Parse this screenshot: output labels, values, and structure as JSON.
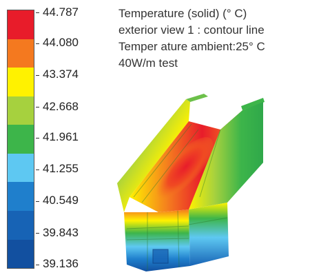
{
  "legend": {
    "ticks": [
      "44.787",
      "44.080",
      "43.374",
      "42.668",
      "41.961",
      "41.255",
      "40.549",
      "39.843",
      "39.136"
    ],
    "band_colors": [
      "#e81c2a",
      "#f4791f",
      "#fff200",
      "#a6d13e",
      "#3db54a",
      "#5ec8f2",
      "#1f7fcc",
      "#1763b5",
      "#1250a0"
    ]
  },
  "info": {
    "line1": "Temperature (solid) (° C)",
    "line2": "exterior view 1 : contour line",
    "line3": "Temper ature ambient:25° C",
    "line4": "40W/m test"
  }
}
